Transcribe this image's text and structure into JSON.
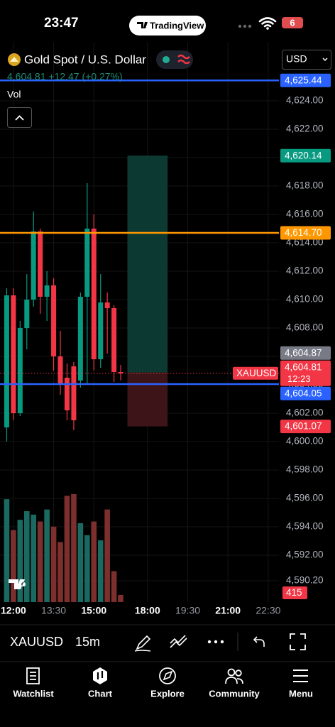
{
  "status_bar": {
    "time": "23:47",
    "app": "TradingView",
    "battery": "6"
  },
  "header": {
    "symbol_name": "Gold Spot / U.S. Dollar",
    "quote": "4,604.81 +12.47 (+0.27%)",
    "indicator": "Vol",
    "currency": "USD"
  },
  "chart_data": {
    "type": "candlestick",
    "x": [
      11.75,
      12,
      12.25,
      12.5,
      12.75,
      13,
      13.25,
      13.5,
      13.75,
      14,
      14.25,
      14.5,
      14.75,
      15,
      15.25,
      15.5,
      15.75,
      16
    ],
    "open": [
      4601.0,
      4610.3,
      4602.0,
      4608.0,
      4610.0,
      4614.8,
      4610.2,
      4611.0,
      4606.0,
      4604.5,
      4605.3,
      4604.3,
      4610.2,
      4615.0,
      4605.8,
      4609.8,
      4609.4,
      4604.9
    ],
    "high": [
      4610.8,
      4610.8,
      4608.5,
      4611.8,
      4616.2,
      4615.0,
      4612.0,
      4611.5,
      4607.8,
      4605.5,
      4605.6,
      4610.5,
      4618.2,
      4616.0,
      4611.8,
      4610.5,
      4609.6,
      4605.4
    ],
    "low": [
      4600.0,
      4601.5,
      4601.8,
      4606.5,
      4609.5,
      4609.0,
      4608.5,
      4605.0,
      4603.3,
      4601.5,
      4600.8,
      4603.8,
      4604.0,
      4605.0,
      4605.2,
      4606.2,
      4604.2,
      4604.3
    ],
    "close": [
      4610.3,
      4602.0,
      4608.0,
      4610.0,
      4614.8,
      4610.2,
      4611.0,
      4606.0,
      4604.0,
      4602.2,
      4601.5,
      4610.2,
      4615.0,
      4605.8,
      4609.8,
      4609.4,
      4604.9,
      4604.8
    ],
    "up_color": "#089981",
    "down_color": "#f23645",
    "ylim": [
      4589.5,
      4627.5
    ],
    "yticks": [
      {
        "value": 4624,
        "label": "4,624.00"
      },
      {
        "value": 4622,
        "label": "4,622.00"
      },
      {
        "value": 4620,
        "label": "4,620.00"
      },
      {
        "value": 4618,
        "label": "4,618.00"
      },
      {
        "value": 4616,
        "label": "4,616.00"
      },
      {
        "value": 4614,
        "label": "4,614.00"
      },
      {
        "value": 4612,
        "label": "4,612.00"
      },
      {
        "value": 4610,
        "label": "4,610.00"
      },
      {
        "value": 4608,
        "label": "4,608.00"
      },
      {
        "value": 4606,
        "label": "4,606.00"
      },
      {
        "value": 4604,
        "label": "4,604.00"
      },
      {
        "value": 4602,
        "label": "4,602.00"
      },
      {
        "value": 4600,
        "label": "4,600.00"
      },
      {
        "value": 4598,
        "label": "4,598.00"
      },
      {
        "value": 4596,
        "label": "4,596.00"
      },
      {
        "value": 4594,
        "label": "4,594.00"
      },
      {
        "value": 4592,
        "label": "4,592.00"
      },
      {
        "value": 4590.2,
        "label": "4,590.20"
      }
    ],
    "xlim": [
      11.5,
      22.9
    ],
    "xticks": [
      {
        "value": 12,
        "label": "12:00"
      },
      {
        "value": 13.5,
        "label": "13:30"
      },
      {
        "value": 15,
        "label": "15:00"
      },
      {
        "value": 18,
        "label": "18:00"
      },
      {
        "value": 19.5,
        "label": "19:30"
      },
      {
        "value": 21,
        "label": "21:00"
      },
      {
        "value": 22.5,
        "label": "22:30"
      }
    ],
    "grid": true,
    "volume": {
      "values": [
        6000,
        4200,
        4800,
        5300,
        5100,
        4700,
        5400,
        4400,
        3500,
        6200,
        6300,
        4600,
        3900,
        4700,
        3600,
        5400,
        1800,
        415
      ],
      "ylim": [
        0,
        7000
      ],
      "up_color": "#1b6a61",
      "down_color": "#7c2f2d"
    },
    "levels": [
      {
        "value": 4625.44,
        "label": "4,625.44",
        "color": "#2962ff",
        "line": true
      },
      {
        "value": 4620.14,
        "label": "4,620.14",
        "color": "#089981",
        "line": false
      },
      {
        "value": 4614.7,
        "label": "4,614.70",
        "color": "#ff9800",
        "line": true
      },
      {
        "value": 4604.87,
        "label": "4,604.87",
        "color": "#787b86",
        "line": false
      },
      {
        "value": 4604.05,
        "label": "4,604.05",
        "color": "#2962ff",
        "line": true
      },
      {
        "value": 4601.07,
        "label": "4,601.07",
        "color": "#f23645",
        "line": false
      }
    ],
    "last_price": {
      "symbol": "XAUUSD",
      "price": {
        "value": 4604.81,
        "label": "4,604.81"
      },
      "countdown": "12:23",
      "color": "#f23645"
    },
    "position": {
      "xrange": [
        16.25,
        18.75
      ],
      "target": 4620.14,
      "entry": 4604.87,
      "stop": 4601.07,
      "profit_color": "#0c3a33",
      "loss_color": "#3d1418"
    }
  },
  "toolbar": {
    "symbol": "XAUUSD",
    "interval": "15m"
  },
  "tabs": [
    "Watchlist",
    "Chart",
    "Explore",
    "Community",
    "Menu"
  ]
}
